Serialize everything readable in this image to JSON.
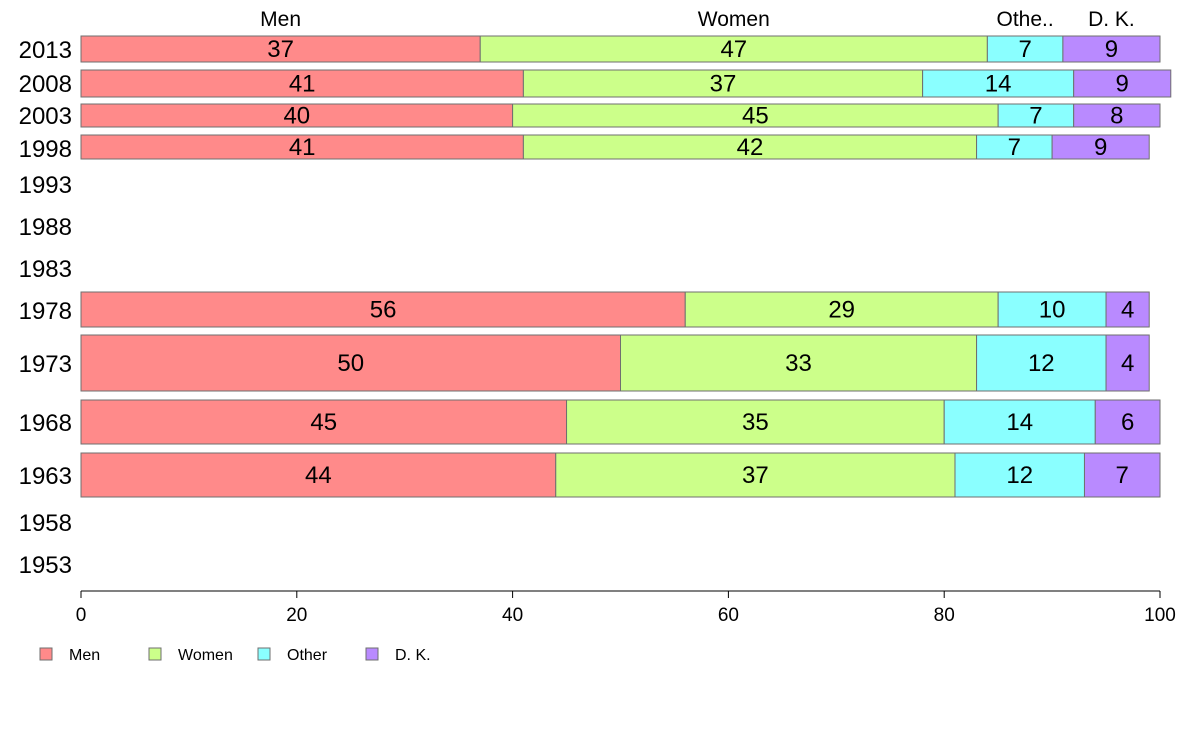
{
  "chart_data": {
    "type": "bar",
    "orientation": "horizontal",
    "stacked": true,
    "title": "",
    "xlabel": "",
    "ylabel": "",
    "xlim": [
      0,
      100
    ],
    "x_ticks": [
      0,
      20,
      40,
      60,
      80,
      100
    ],
    "grid": false,
    "legend_position": "bottom-left",
    "categories": [
      "2013",
      "2008",
      "2003",
      "1998",
      "1993",
      "1988",
      "1983",
      "1978",
      "1973",
      "1968",
      "1963",
      "1958",
      "1953"
    ],
    "series": [
      {
        "name": "Men",
        "color": "#ff8a8a",
        "values": [
          37,
          41,
          40,
          41,
          null,
          null,
          null,
          56,
          50,
          45,
          44,
          null,
          null
        ]
      },
      {
        "name": "Women",
        "color": "#ccff8a",
        "values": [
          47,
          37,
          45,
          42,
          null,
          null,
          null,
          29,
          33,
          35,
          37,
          null,
          null
        ]
      },
      {
        "name": "Other",
        "color": "#8affff",
        "values": [
          7,
          14,
          7,
          7,
          null,
          null,
          null,
          10,
          12,
          14,
          12,
          null,
          null
        ]
      },
      {
        "name": "D. K.",
        "color": "#b98aff",
        "values": [
          9,
          9,
          8,
          9,
          null,
          null,
          null,
          4,
          4,
          6,
          7,
          null,
          null
        ]
      }
    ],
    "top_column_labels": [
      "Men",
      "Women",
      "Othe..",
      "D. K."
    ]
  }
}
